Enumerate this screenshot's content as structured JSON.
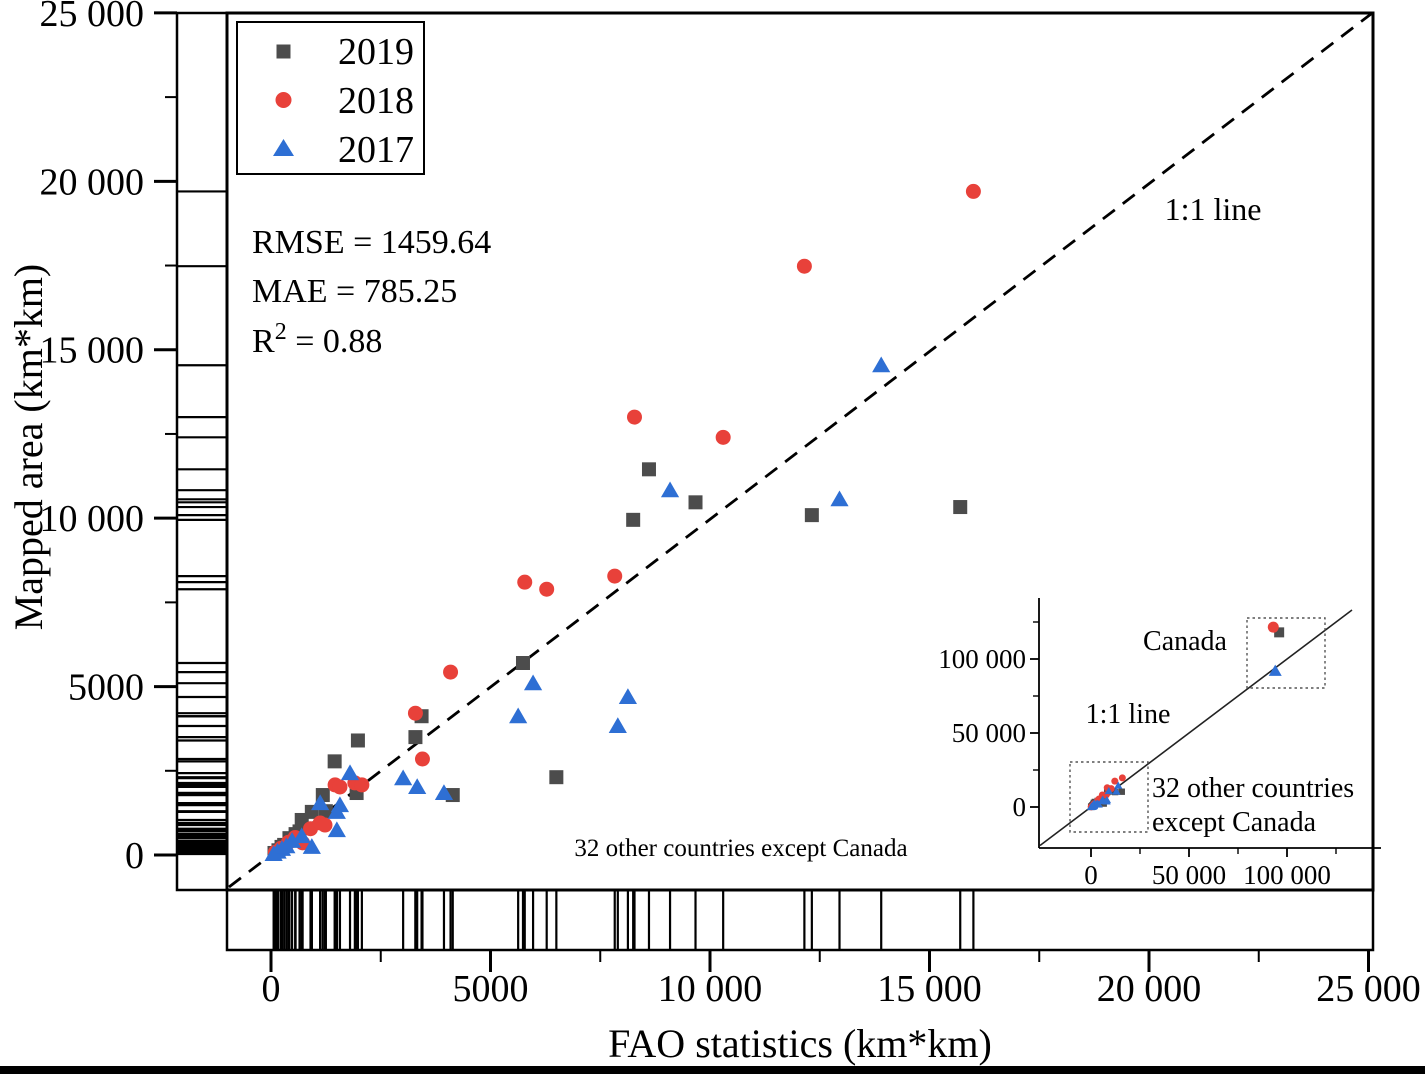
{
  "figure": {
    "x_axis": {
      "title": "FAO statistics (km*km)",
      "tick_labels": [
        "0",
        "5000",
        "10 000",
        "15 000",
        "20 000",
        "25 000"
      ],
      "tick_values": [
        0,
        5000,
        10000,
        15000,
        20000,
        25000
      ],
      "minor_tick_values": [
        2500,
        7500,
        12500,
        17500,
        22500
      ]
    },
    "y_axis": {
      "title": "Mapped area (km*km)",
      "tick_labels": [
        "0",
        "5000",
        "10 000",
        "15 000",
        "20 000",
        "25 000"
      ],
      "tick_values": [
        0,
        5000,
        10000,
        15000,
        20000,
        25000
      ],
      "minor_tick_values": [
        2500,
        7500,
        12500,
        17500,
        22500
      ]
    },
    "stats": {
      "rmse": "RMSE = 1459.64",
      "mae": "MAE = 785.25",
      "r2_base": "R",
      "r2_sup": "2",
      "r2_rest": " = 0.88"
    },
    "line_label": "1:1 line",
    "annotation": "32 other countries except Canada",
    "inset": {
      "x_tick_labels": [
        "0",
        "50 000",
        "100 000"
      ],
      "x_tick_values": [
        0,
        50000,
        100000
      ],
      "x_minor_tick_values": [
        25000,
        75000,
        125000
      ],
      "y_tick_labels": [
        "0",
        "50 000",
        "100 000"
      ],
      "y_tick_values": [
        0,
        50000,
        100000
      ],
      "y_minor_tick_values": [
        25000,
        75000,
        125000
      ],
      "canada_label": "Canada",
      "line_label": "1:1 line",
      "others_label_line1": "32 other countries",
      "others_label_line2": "except Canada"
    }
  },
  "chart_data": {
    "type": "scatter",
    "title": "",
    "xlabel": "FAO statistics (km*km)",
    "ylabel": "Mapped area (km*km)",
    "xlim": [
      0,
      25000
    ],
    "ylim": [
      0,
      25000
    ],
    "grid": false,
    "legend_position": "top-left",
    "reference_line": "1:1",
    "stats": {
      "RMSE": 1459.64,
      "MAE": 785.25,
      "R2": 0.88
    },
    "series": [
      {
        "name": "2019",
        "marker": "square",
        "color": "#4c4c4c",
        "points": [
          [
            80,
            60
          ],
          [
            170,
            140
          ],
          [
            240,
            240
          ],
          [
            300,
            300
          ],
          [
            420,
            500
          ],
          [
            560,
            620
          ],
          [
            650,
            700
          ],
          [
            700,
            1040
          ],
          [
            930,
            1280
          ],
          [
            1180,
            1780
          ],
          [
            1250,
            1300
          ],
          [
            1450,
            2780
          ],
          [
            1950,
            1840
          ],
          [
            1980,
            3400
          ],
          [
            3290,
            3500
          ],
          [
            3430,
            4120
          ],
          [
            4140,
            1780
          ],
          [
            5740,
            5700
          ],
          [
            6500,
            2310
          ],
          [
            8250,
            9950
          ],
          [
            8610,
            11450
          ],
          [
            9670,
            10470
          ],
          [
            12320,
            10090
          ],
          [
            15700,
            10330
          ]
        ]
      },
      {
        "name": "2018",
        "marker": "circle",
        "color": "#e8413a",
        "points": [
          [
            100,
            80
          ],
          [
            230,
            200
          ],
          [
            400,
            380
          ],
          [
            550,
            520
          ],
          [
            720,
            360
          ],
          [
            900,
            780
          ],
          [
            1120,
            950
          ],
          [
            1230,
            890
          ],
          [
            1460,
            2080
          ],
          [
            1570,
            2020
          ],
          [
            1910,
            2140
          ],
          [
            2070,
            2080
          ],
          [
            3290,
            4210
          ],
          [
            3450,
            2850
          ],
          [
            4090,
            5430
          ],
          [
            5780,
            8100
          ],
          [
            6280,
            7890
          ],
          [
            7830,
            8280
          ],
          [
            8280,
            13000
          ],
          [
            10300,
            12400
          ],
          [
            12150,
            17480
          ],
          [
            16000,
            19700
          ]
        ]
      },
      {
        "name": "2017",
        "marker": "triangle",
        "color": "#2e6fd4",
        "points": [
          [
            60,
            30
          ],
          [
            150,
            100
          ],
          [
            250,
            180
          ],
          [
            350,
            260
          ],
          [
            480,
            420
          ],
          [
            700,
            560
          ],
          [
            930,
            240
          ],
          [
            1120,
            1540
          ],
          [
            1500,
            740
          ],
          [
            1500,
            1280
          ],
          [
            1570,
            1480
          ],
          [
            1800,
            2430
          ],
          [
            3010,
            2280
          ],
          [
            3330,
            2020
          ],
          [
            3940,
            1840
          ],
          [
            5630,
            4120
          ],
          [
            5970,
            5100
          ],
          [
            7900,
            3830
          ],
          [
            8130,
            4690
          ],
          [
            9090,
            10830
          ],
          [
            12950,
            10560
          ],
          [
            13900,
            14540
          ]
        ]
      }
    ],
    "inset_chart": {
      "type": "scatter",
      "xlim": [
        0,
        125000
      ],
      "ylim": [
        0,
        125000
      ],
      "canada_points": [
        {
          "name": "2019",
          "marker": "square",
          "color": "#4c4c4c",
          "point": [
            96000,
            118000
          ]
        },
        {
          "name": "2018",
          "marker": "circle",
          "color": "#e8413a",
          "point": [
            93000,
            121500
          ]
        },
        {
          "name": "2017",
          "marker": "triangle",
          "color": "#2e6fd4",
          "point": [
            94000,
            92000
          ]
        }
      ]
    }
  }
}
